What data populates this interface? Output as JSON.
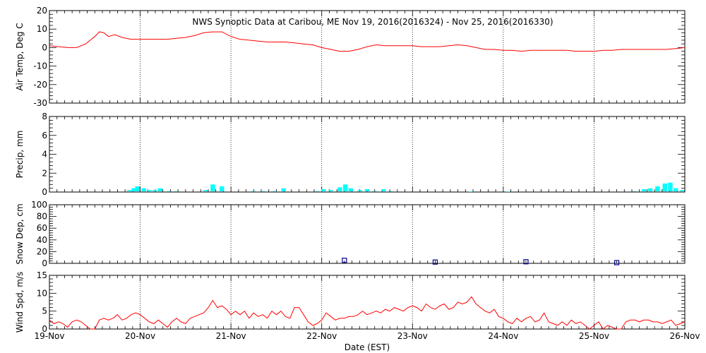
{
  "title": "NWS Synoptic Data at Caribou, ME    Nov 19, 2016(2016324) - Nov 25, 2016(2016330)",
  "x_axis": {
    "label": "Date (EST)",
    "tick_labels": [
      "19-Nov",
      "20-Nov",
      "21-Nov",
      "22-Nov",
      "23-Nov",
      "24-Nov",
      "25-Nov",
      "26-Nov"
    ],
    "range_days": [
      0,
      7
    ]
  },
  "chart_data": [
    {
      "type": "line",
      "ylabel": "Air Temp, Deg C",
      "ylim": [
        -30,
        20
      ],
      "yticks": [
        -30,
        -20,
        -10,
        0,
        10,
        20
      ],
      "color": "#ff0000",
      "x_unit": "days since 19-Nov 00:00 EST",
      "points": [
        [
          0,
          1
        ],
        [
          0.1,
          0.5
        ],
        [
          0.2,
          0
        ],
        [
          0.3,
          0
        ],
        [
          0.4,
          2
        ],
        [
          0.5,
          6
        ],
        [
          0.55,
          8.5
        ],
        [
          0.6,
          8
        ],
        [
          0.65,
          6
        ],
        [
          0.72,
          7
        ],
        [
          0.8,
          5.5
        ],
        [
          0.9,
          4.5
        ],
        [
          1.0,
          4.5
        ],
        [
          1.1,
          4.5
        ],
        [
          1.2,
          4.5
        ],
        [
          1.3,
          4.5
        ],
        [
          1.4,
          5
        ],
        [
          1.5,
          5.5
        ],
        [
          1.6,
          6.5
        ],
        [
          1.7,
          8
        ],
        [
          1.8,
          8.5
        ],
        [
          1.9,
          8.5
        ],
        [
          2.0,
          6
        ],
        [
          2.1,
          4.5
        ],
        [
          2.2,
          4
        ],
        [
          2.3,
          3.5
        ],
        [
          2.4,
          3
        ],
        [
          2.5,
          3
        ],
        [
          2.6,
          3
        ],
        [
          2.7,
          2.5
        ],
        [
          2.8,
          2
        ],
        [
          2.9,
          1.5
        ],
        [
          3.0,
          0
        ],
        [
          3.1,
          -1
        ],
        [
          3.2,
          -2
        ],
        [
          3.3,
          -2
        ],
        [
          3.4,
          -1
        ],
        [
          3.5,
          0.5
        ],
        [
          3.6,
          1.5
        ],
        [
          3.7,
          1
        ],
        [
          3.8,
          1
        ],
        [
          3.9,
          1
        ],
        [
          4.0,
          1
        ],
        [
          4.1,
          0.5
        ],
        [
          4.2,
          0.5
        ],
        [
          4.3,
          0.5
        ],
        [
          4.4,
          1
        ],
        [
          4.5,
          1.5
        ],
        [
          4.6,
          1
        ],
        [
          4.7,
          0
        ],
        [
          4.8,
          -1
        ],
        [
          4.9,
          -1
        ],
        [
          5.0,
          -1.5
        ],
        [
          5.1,
          -1.5
        ],
        [
          5.2,
          -2
        ],
        [
          5.3,
          -1.5
        ],
        [
          5.4,
          -1.5
        ],
        [
          5.5,
          -1.5
        ],
        [
          5.6,
          -1.5
        ],
        [
          5.7,
          -1.5
        ],
        [
          5.8,
          -2
        ],
        [
          5.9,
          -2
        ],
        [
          6.0,
          -2
        ],
        [
          6.1,
          -1.5
        ],
        [
          6.2,
          -1.5
        ],
        [
          6.3,
          -1
        ],
        [
          6.4,
          -1
        ],
        [
          6.5,
          -1
        ],
        [
          6.6,
          -1
        ],
        [
          6.7,
          -1
        ],
        [
          6.8,
          -1
        ],
        [
          6.9,
          -0.5
        ],
        [
          7.0,
          0
        ]
      ]
    },
    {
      "type": "bar",
      "ylabel": "Precip, mm",
      "ylim": [
        0,
        8
      ],
      "yticks": [
        0,
        2,
        4,
        6,
        8
      ],
      "color": "#00ffff",
      "x_unit": "days since 19-Nov 00:00 EST",
      "points": [
        [
          0.88,
          0.2
        ],
        [
          0.93,
          0.4
        ],
        [
          0.97,
          0.6
        ],
        [
          1.04,
          0.4
        ],
        [
          1.1,
          0.2
        ],
        [
          1.16,
          0.2
        ],
        [
          1.22,
          0.4
        ],
        [
          1.32,
          0.1
        ],
        [
          1.4,
          0.1
        ],
        [
          1.72,
          0.2
        ],
        [
          1.8,
          0.8
        ],
        [
          1.9,
          0.6
        ],
        [
          2.25,
          0.1
        ],
        [
          2.35,
          0.1
        ],
        [
          2.48,
          0.1
        ],
        [
          2.58,
          0.4
        ],
        [
          2.95,
          0.1
        ],
        [
          3.02,
          0.3
        ],
        [
          3.1,
          0.2
        ],
        [
          3.2,
          0.5
        ],
        [
          3.26,
          0.8
        ],
        [
          3.32,
          0.4
        ],
        [
          3.42,
          0.2
        ],
        [
          3.5,
          0.3
        ],
        [
          3.58,
          0.1
        ],
        [
          3.68,
          0.3
        ],
        [
          3.76,
          0.1
        ],
        [
          4.64,
          0.05
        ],
        [
          5.05,
          0.05
        ],
        [
          6.45,
          0.1
        ],
        [
          6.55,
          0.3
        ],
        [
          6.62,
          0.4
        ],
        [
          6.7,
          0.6
        ],
        [
          6.78,
          0.9
        ],
        [
          6.84,
          1.0
        ],
        [
          6.9,
          0.4
        ],
        [
          6.97,
          0.2
        ]
      ]
    },
    {
      "type": "scatter",
      "ylabel": "Snow Dep, cm",
      "ylim": [
        0,
        100
      ],
      "yticks": [
        0,
        20,
        40,
        60,
        80,
        100
      ],
      "color": "#00008b",
      "marker": "square",
      "x_unit": "days since 19-Nov 00:00 EST",
      "points": [
        [
          3.25,
          4
        ],
        [
          4.25,
          1
        ],
        [
          5.25,
          1.5
        ],
        [
          6.25,
          0
        ]
      ]
    },
    {
      "type": "line",
      "ylabel": "Wind Spd, m/s",
      "ylim": [
        0,
        15
      ],
      "yticks": [
        0,
        5,
        10,
        15
      ],
      "color": "#ff0000",
      "x_unit": "days since 19-Nov 00:00 EST",
      "points": [
        [
          0.0,
          2.5
        ],
        [
          0.05,
          1.5
        ],
        [
          0.1,
          2
        ],
        [
          0.15,
          1.5
        ],
        [
          0.2,
          0.5
        ],
        [
          0.25,
          2
        ],
        [
          0.3,
          2.5
        ],
        [
          0.35,
          2
        ],
        [
          0.4,
          1
        ],
        [
          0.45,
          0
        ],
        [
          0.5,
          0
        ],
        [
          0.55,
          2.5
        ],
        [
          0.6,
          3
        ],
        [
          0.65,
          2.5
        ],
        [
          0.7,
          3
        ],
        [
          0.75,
          4
        ],
        [
          0.8,
          2.5
        ],
        [
          0.85,
          3
        ],
        [
          0.9,
          4
        ],
        [
          0.95,
          4.5
        ],
        [
          1.0,
          4
        ],
        [
          1.05,
          3
        ],
        [
          1.1,
          2
        ],
        [
          1.15,
          1.5
        ],
        [
          1.2,
          2.5
        ],
        [
          1.25,
          1.5
        ],
        [
          1.3,
          0.5
        ],
        [
          1.35,
          2
        ],
        [
          1.4,
          3
        ],
        [
          1.45,
          2
        ],
        [
          1.5,
          1.5
        ],
        [
          1.55,
          3
        ],
        [
          1.6,
          3.5
        ],
        [
          1.65,
          4
        ],
        [
          1.7,
          4.5
        ],
        [
          1.75,
          6
        ],
        [
          1.8,
          8
        ],
        [
          1.85,
          6
        ],
        [
          1.9,
          6.5
        ],
        [
          1.95,
          5.5
        ],
        [
          2.0,
          4
        ],
        [
          2.05,
          5
        ],
        [
          2.1,
          4
        ],
        [
          2.15,
          5
        ],
        [
          2.2,
          3
        ],
        [
          2.25,
          4.5
        ],
        [
          2.3,
          3.5
        ],
        [
          2.35,
          4
        ],
        [
          2.4,
          3
        ],
        [
          2.45,
          5
        ],
        [
          2.5,
          4
        ],
        [
          2.55,
          5
        ],
        [
          2.6,
          3.5
        ],
        [
          2.65,
          3
        ],
        [
          2.7,
          6
        ],
        [
          2.75,
          6
        ],
        [
          2.8,
          4
        ],
        [
          2.85,
          2
        ],
        [
          2.9,
          1
        ],
        [
          2.95,
          1.5
        ],
        [
          3.0,
          2.5
        ],
        [
          3.05,
          4.5
        ],
        [
          3.1,
          3.5
        ],
        [
          3.15,
          2.5
        ],
        [
          3.2,
          3
        ],
        [
          3.25,
          3
        ],
        [
          3.3,
          3.5
        ],
        [
          3.35,
          3.5
        ],
        [
          3.4,
          4
        ],
        [
          3.45,
          5
        ],
        [
          3.5,
          4
        ],
        [
          3.55,
          4.5
        ],
        [
          3.6,
          5
        ],
        [
          3.65,
          4.5
        ],
        [
          3.7,
          5.5
        ],
        [
          3.75,
          5
        ],
        [
          3.8,
          6
        ],
        [
          3.85,
          5.5
        ],
        [
          3.9,
          5
        ],
        [
          3.95,
          6
        ],
        [
          4.0,
          6.5
        ],
        [
          4.05,
          6
        ],
        [
          4.1,
          5
        ],
        [
          4.15,
          7
        ],
        [
          4.2,
          6
        ],
        [
          4.25,
          5.5
        ],
        [
          4.3,
          6.5
        ],
        [
          4.35,
          7
        ],
        [
          4.4,
          5.5
        ],
        [
          4.45,
          6
        ],
        [
          4.5,
          7.5
        ],
        [
          4.55,
          7
        ],
        [
          4.6,
          7.5
        ],
        [
          4.65,
          9
        ],
        [
          4.7,
          7
        ],
        [
          4.75,
          6
        ],
        [
          4.8,
          5
        ],
        [
          4.85,
          4.5
        ],
        [
          4.9,
          5.5
        ],
        [
          4.95,
          3.5
        ],
        [
          5.0,
          3
        ],
        [
          5.05,
          2
        ],
        [
          5.1,
          1.5
        ],
        [
          5.15,
          3
        ],
        [
          5.2,
          2
        ],
        [
          5.25,
          3
        ],
        [
          5.3,
          3.5
        ],
        [
          5.35,
          2
        ],
        [
          5.4,
          2.5
        ],
        [
          5.45,
          4.5
        ],
        [
          5.5,
          2
        ],
        [
          5.55,
          1.5
        ],
        [
          5.6,
          1
        ],
        [
          5.65,
          2
        ],
        [
          5.7,
          1
        ],
        [
          5.75,
          2.5
        ],
        [
          5.8,
          1.5
        ],
        [
          5.85,
          2
        ],
        [
          5.9,
          1
        ],
        [
          5.95,
          0
        ],
        [
          6.0,
          1
        ],
        [
          6.05,
          2
        ],
        [
          6.1,
          0
        ],
        [
          6.15,
          1
        ],
        [
          6.2,
          0.5
        ],
        [
          6.25,
          0
        ],
        [
          6.3,
          0
        ],
        [
          6.35,
          2
        ],
        [
          6.4,
          2.5
        ],
        [
          6.45,
          2.5
        ],
        [
          6.5,
          2
        ],
        [
          6.55,
          2.5
        ],
        [
          6.6,
          2.5
        ],
        [
          6.65,
          2
        ],
        [
          6.7,
          2
        ],
        [
          6.75,
          1.5
        ],
        [
          6.8,
          2
        ],
        [
          6.85,
          2.5
        ],
        [
          6.9,
          1
        ],
        [
          6.95,
          1.5
        ],
        [
          7.0,
          2
        ]
      ]
    }
  ]
}
